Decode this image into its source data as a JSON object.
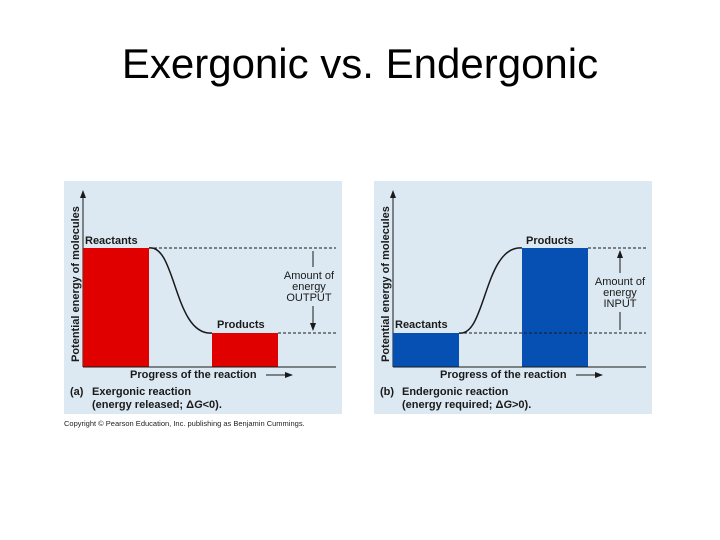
{
  "slide": {
    "title": "Exergonic vs. Endergonic"
  },
  "colors": {
    "panel_bg": "#dce9f2",
    "exergonic_bar": "#e00000",
    "endergonic_bar": "#0650b4"
  },
  "figure": {
    "copyright": "Copyright © Pearson Education, Inc. publishing as Benjamin Cummings.",
    "panels": [
      {
        "ylabel": "Potential energy of molecules",
        "xlabel": "Progress of the reaction",
        "high_label": "Reactants",
        "low_label": "Products",
        "amount_lines": [
          "Amount of",
          "energy",
          "OUTPUT"
        ],
        "caption_tag": "(a)",
        "caption_line1": "Exergonic reaction",
        "caption_line2_pre": "(energy released; Δ",
        "caption_line2_g": "G",
        "caption_line2_post": "<0)."
      },
      {
        "ylabel": "Potential energy of molecules",
        "xlabel": "Progress of the reaction",
        "high_label": "Products",
        "low_label": "Reactants",
        "amount_lines": [
          "Amount of",
          "energy",
          "INPUT"
        ],
        "caption_tag": "(b)",
        "caption_line1": "Endergonic reaction",
        "caption_line2_pre": "(energy required; Δ",
        "caption_line2_g": "G",
        "caption_line2_post": ">0)."
      }
    ]
  }
}
